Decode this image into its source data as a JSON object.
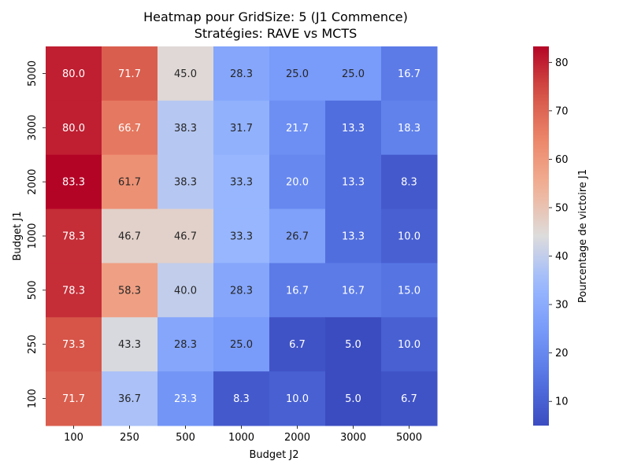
{
  "chart_data": {
    "type": "heatmap",
    "title": "Heatmap pour GridSize: 5 (J1 Commence)",
    "subtitle": "Stratégies: RAVE vs MCTS",
    "xlabel": "Budget J2",
    "ylabel": "Budget J1",
    "x_categories": [
      "100",
      "250",
      "500",
      "1000",
      "2000",
      "3000",
      "5000"
    ],
    "y_categories": [
      "5000",
      "3000",
      "2000",
      "1000",
      "500",
      "250",
      "100"
    ],
    "values": [
      [
        80.0,
        71.7,
        45.0,
        28.3,
        25.0,
        25.0,
        16.7
      ],
      [
        80.0,
        66.7,
        38.3,
        31.7,
        21.7,
        13.3,
        18.3
      ],
      [
        83.3,
        61.7,
        38.3,
        33.3,
        20.0,
        13.3,
        8.3
      ],
      [
        78.3,
        46.7,
        46.7,
        33.3,
        26.7,
        13.3,
        10.0
      ],
      [
        78.3,
        58.3,
        40.0,
        28.3,
        16.7,
        16.7,
        15.0
      ],
      [
        73.3,
        43.3,
        28.3,
        25.0,
        6.7,
        5.0,
        10.0
      ],
      [
        71.7,
        36.7,
        23.3,
        8.3,
        10.0,
        5.0,
        6.7
      ]
    ],
    "colorbar": {
      "label": "Pourcentage de victoire J1",
      "ticks": [
        "10",
        "20",
        "30",
        "40",
        "50",
        "60",
        "70",
        "80"
      ],
      "vmin": 5.0,
      "vmax": 83.3,
      "colormap": "coolwarm"
    },
    "grid": false,
    "legend": "colorbar-right"
  }
}
